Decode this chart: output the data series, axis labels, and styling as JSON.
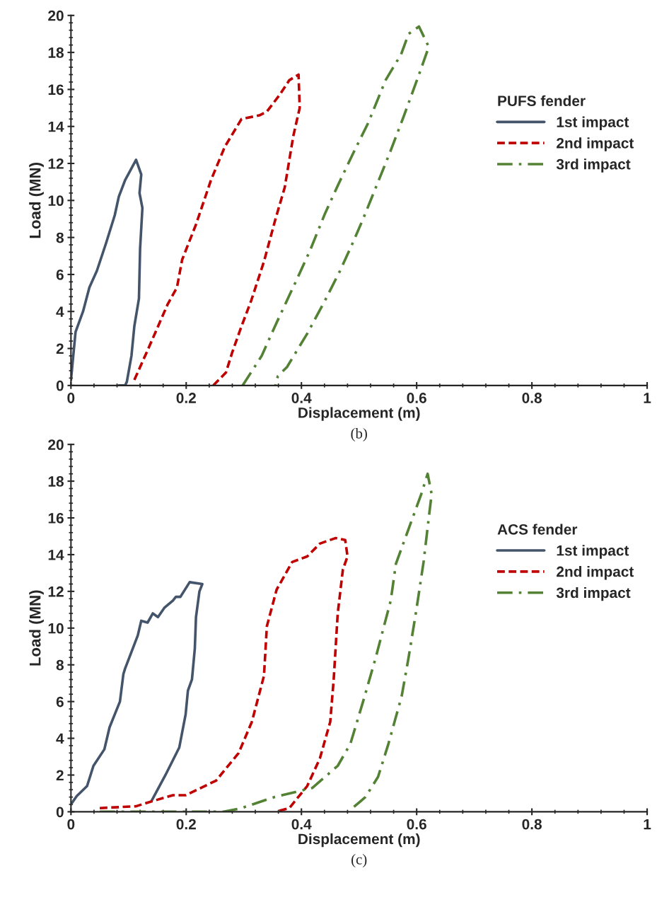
{
  "chart_data": [
    {
      "type": "line",
      "xlabel": "Displacement (m)",
      "ylabel": "Load (MN)",
      "legend_title": "PUFS fender",
      "annotations": [
        "(b)"
      ],
      "xlim": [
        0,
        1
      ],
      "xticks": [
        0,
        0.2,
        0.4,
        0.6,
        0.8,
        1
      ],
      "ylim": [
        0,
        20
      ],
      "yticks": [
        0,
        2,
        4,
        6,
        8,
        10,
        12,
        14,
        16,
        18,
        20
      ],
      "grid": false,
      "legend": "right",
      "series": [
        {
          "name": "1st impact",
          "color": "#44546a",
          "line_style": "solid",
          "x": [
            0,
            0.008,
            0.021,
            0.032,
            0.045,
            0.061,
            0.076,
            0.083,
            0.094,
            0.113,
            0.122,
            0.119,
            0.124,
            0.12,
            0.118,
            0.11,
            0.105,
            0.097,
            0.094,
            0.083
          ],
          "values": [
            0.3,
            2.9,
            4.0,
            5.3,
            6.2,
            7.7,
            9.2,
            10.2,
            11.1,
            12.2,
            11.4,
            10.4,
            9.6,
            7.4,
            4.7,
            3.2,
            1.6,
            0.2,
            0,
            0
          ]
        },
        {
          "name": "2nd impact",
          "color": "#c00000",
          "line_style": "dashed",
          "x": [
            0.11,
            0.133,
            0.168,
            0.184,
            0.193,
            0.217,
            0.243,
            0.267,
            0.296,
            0.327,
            0.34,
            0.362,
            0.379,
            0.395,
            0.397,
            0.386,
            0.371,
            0.355,
            0.335,
            0.313,
            0.296,
            0.28,
            0.269,
            0.247
          ],
          "values": [
            0.3,
            1.9,
            4.4,
            5.3,
            6.8,
            8.7,
            11.1,
            12.9,
            14.4,
            14.6,
            14.8,
            15.7,
            16.5,
            16.8,
            15.0,
            13.5,
            10.7,
            9.0,
            6.7,
            4.6,
            3.2,
            1.8,
            0.7,
            0
          ]
        },
        {
          "name": "3rd impact",
          "color": "#548235",
          "line_style": "dashdot",
          "x": [
            0.298,
            0.331,
            0.357,
            0.393,
            0.415,
            0.441,
            0.463,
            0.489,
            0.516,
            0.546,
            0.573,
            0.586,
            0.604,
            0.621,
            0.604,
            0.577,
            0.555,
            0.533,
            0.507,
            0.489,
            0.467,
            0.441,
            0.41,
            0.375,
            0.359,
            0.355
          ],
          "values": [
            0,
            1.6,
            3.4,
            5.8,
            7.3,
            9.3,
            10.8,
            12.5,
            14.2,
            16.5,
            17.9,
            19.0,
            19.4,
            18.3,
            16.8,
            14.5,
            12.7,
            11.0,
            9.0,
            7.7,
            6.2,
            4.6,
            2.8,
            1.0,
            0.5,
            0
          ]
        }
      ]
    },
    {
      "type": "line",
      "xlabel": "Displacement (m)",
      "ylabel": "Load (MN)",
      "legend_title": "ACS fender",
      "annotations": [
        "(c)"
      ],
      "xlim": [
        0,
        1
      ],
      "xticks": [
        0,
        0.2,
        0.4,
        0.6,
        0.8,
        1
      ],
      "ylim": [
        0,
        20
      ],
      "yticks": [
        0,
        2,
        4,
        6,
        8,
        10,
        12,
        14,
        16,
        18,
        20
      ],
      "grid": false,
      "legend": "right",
      "series": [
        {
          "name": "1st impact",
          "color": "#44546a",
          "line_style": "solid",
          "x": [
            0,
            0.01,
            0.028,
            0.039,
            0.058,
            0.067,
            0.085,
            0.091,
            0.094,
            0.116,
            0.122,
            0.133,
            0.142,
            0.151,
            0.162,
            0.177,
            0.182,
            0.19,
            0.206,
            0.228,
            0.223,
            0.217,
            0.215,
            0.21,
            0.203,
            0.199,
            0.188,
            0.164,
            0.14
          ],
          "values": [
            0.4,
            0.85,
            1.4,
            2.5,
            3.4,
            4.6,
            6.0,
            7.5,
            7.8,
            9.6,
            10.4,
            10.3,
            10.8,
            10.6,
            11.1,
            11.5,
            11.7,
            11.7,
            12.5,
            12.4,
            12.0,
            10.6,
            8.9,
            7.2,
            6.6,
            5.3,
            3.5,
            2.0,
            0.6
          ]
        },
        {
          "name": "2nd impact",
          "color": "#c00000",
          "line_style": "dashed",
          "x": [
            0.05,
            0.113,
            0.133,
            0.177,
            0.199,
            0.252,
            0.291,
            0.314,
            0.335,
            0.34,
            0.357,
            0.384,
            0.41,
            0.432,
            0.459,
            0.476,
            0.48,
            0.472,
            0.463,
            0.456,
            0.45,
            0.432,
            0.41,
            0.379,
            0.355
          ],
          "values": [
            0.2,
            0.3,
            0.5,
            0.9,
            0.9,
            1.7,
            3.2,
            4.9,
            7.4,
            10.1,
            12.1,
            13.6,
            13.9,
            14.6,
            14.9,
            14.8,
            13.9,
            13.2,
            10.8,
            7.2,
            4.9,
            2.9,
            1.4,
            0.2,
            0
          ]
        },
        {
          "name": "3rd impact",
          "color": "#548235",
          "line_style": "dashdot",
          "x": [
            0.05,
            0.265,
            0.296,
            0.353,
            0.419,
            0.463,
            0.485,
            0.507,
            0.529,
            0.555,
            0.564,
            0.586,
            0.608,
            0.619,
            0.626,
            0.621,
            0.612,
            0.599,
            0.586,
            0.574,
            0.551,
            0.533,
            0.511,
            0.485
          ],
          "values": [
            0,
            0,
            0.2,
            0.8,
            1.3,
            2.5,
            3.7,
            6.0,
            8.4,
            11.5,
            13.5,
            15.4,
            17.3,
            18.4,
            17.3,
            16.0,
            13.6,
            10.9,
            8.4,
            6.3,
            3.7,
            1.9,
            0.8,
            0.1
          ]
        }
      ]
    }
  ]
}
